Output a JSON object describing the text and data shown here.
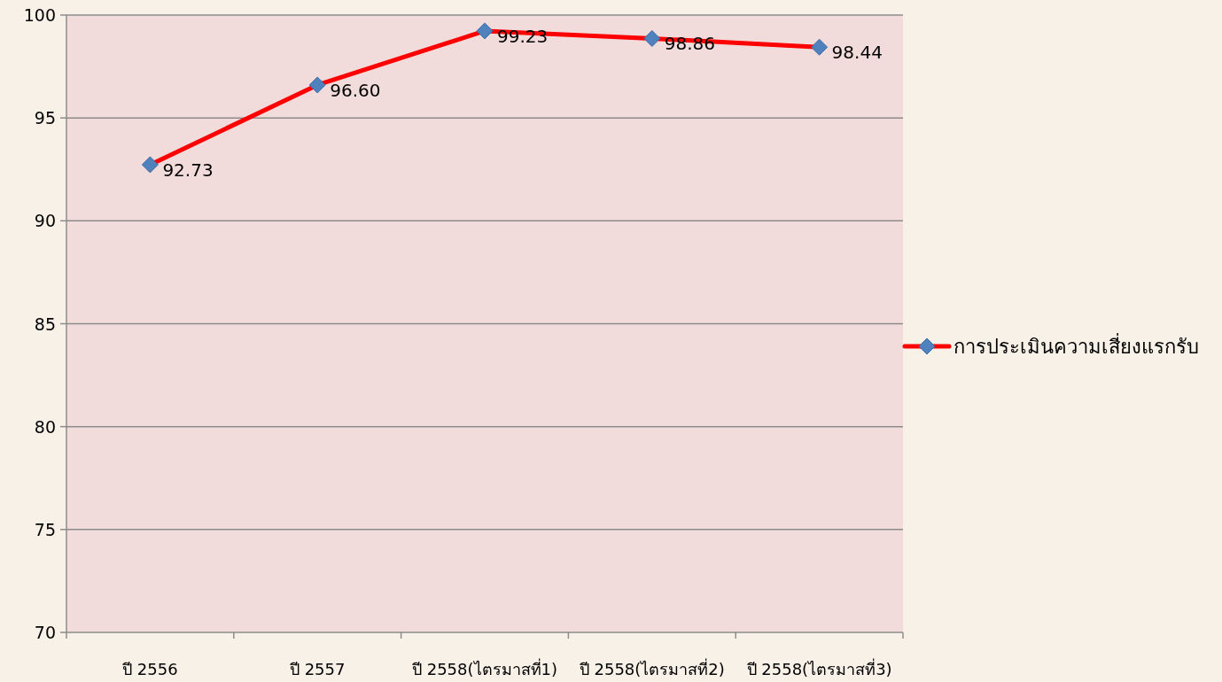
{
  "chart_data": {
    "type": "line",
    "categories": [
      "ปี 2556",
      "ปี 2557",
      "ปี 2558(ไตรมาสที่1)",
      "ปี 2558(ไตรมาสที่2)",
      "ปี 2558(ไตรมาสที่3)"
    ],
    "series": [
      {
        "name": "การประเมินความเสี่ยงแรกรับ",
        "color": "#ff0000",
        "values": [
          92.73,
          96.6,
          99.23,
          98.86,
          98.44
        ],
        "value_labels": [
          "92.73",
          "96.60",
          "99.23",
          "98.86",
          "98.44"
        ]
      }
    ],
    "ylim": [
      70,
      100
    ],
    "yticks": [
      70,
      75,
      80,
      85,
      90,
      95,
      100
    ],
    "grid": "y",
    "legend": "right",
    "marker": "diamond"
  }
}
